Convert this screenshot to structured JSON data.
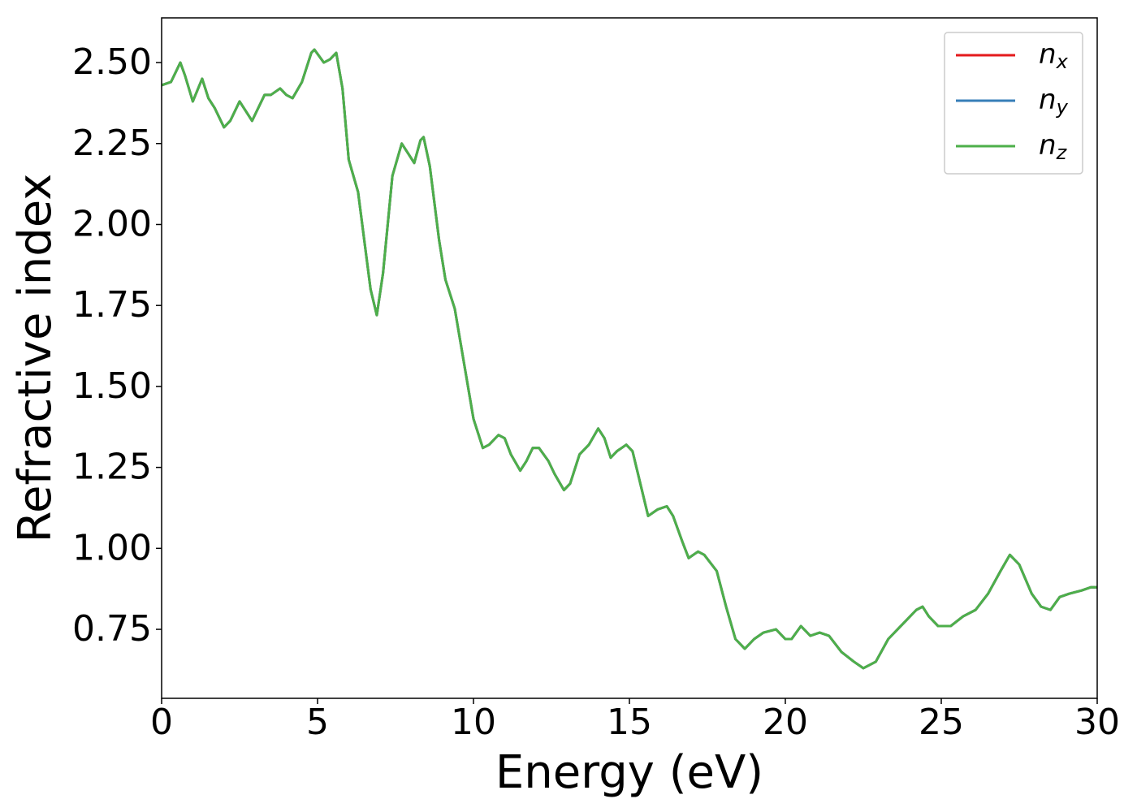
{
  "chart_data": {
    "type": "line",
    "xlabel": "Energy (eV)",
    "ylabel": "Refractive index",
    "x": [
      0,
      0.3,
      0.6,
      0.75,
      1.0,
      1.3,
      1.5,
      1.7,
      2.0,
      2.2,
      2.5,
      2.7,
      2.9,
      3.1,
      3.3,
      3.5,
      3.8,
      4.0,
      4.2,
      4.5,
      4.8,
      4.9,
      5.2,
      5.4,
      5.6,
      5.8,
      6.0,
      6.3,
      6.5,
      6.7,
      6.9,
      7.1,
      7.4,
      7.7,
      7.9,
      8.1,
      8.3,
      8.4,
      8.6,
      8.9,
      9.1,
      9.4,
      9.7,
      10.0,
      10.3,
      10.5,
      10.8,
      11.0,
      11.2,
      11.5,
      11.7,
      11.9,
      12.1,
      12.4,
      12.6,
      12.9,
      13.1,
      13.4,
      13.7,
      14.0,
      14.2,
      14.4,
      14.6,
      14.9,
      15.1,
      15.4,
      15.6,
      15.9,
      16.2,
      16.4,
      16.7,
      16.9,
      17.2,
      17.4,
      17.8,
      18.1,
      18.4,
      18.7,
      19.0,
      19.3,
      19.7,
      20.0,
      20.2,
      20.5,
      20.8,
      21.1,
      21.4,
      21.8,
      22.2,
      22.5,
      22.9,
      23.3,
      23.8,
      24.2,
      24.4,
      24.6,
      24.9,
      25.3,
      25.7,
      26.1,
      26.5,
      26.9,
      27.2,
      27.5,
      27.9,
      28.2,
      28.5,
      28.8,
      29.1,
      29.5,
      29.8,
      30.0
    ],
    "series": [
      {
        "name": "nx",
        "color": "#e41a1c",
        "values": [
          2.43,
          2.44,
          2.5,
          2.46,
          2.38,
          2.45,
          2.39,
          2.36,
          2.3,
          2.32,
          2.38,
          2.35,
          2.32,
          2.36,
          2.4,
          2.4,
          2.42,
          2.4,
          2.39,
          2.44,
          2.53,
          2.54,
          2.5,
          2.51,
          2.53,
          2.42,
          2.2,
          2.1,
          1.95,
          1.8,
          1.72,
          1.85,
          2.15,
          2.25,
          2.22,
          2.19,
          2.26,
          2.27,
          2.18,
          1.95,
          1.83,
          1.74,
          1.57,
          1.4,
          1.31,
          1.32,
          1.35,
          1.34,
          1.29,
          1.24,
          1.27,
          1.31,
          1.31,
          1.27,
          1.23,
          1.18,
          1.2,
          1.29,
          1.32,
          1.37,
          1.34,
          1.28,
          1.3,
          1.32,
          1.3,
          1.18,
          1.1,
          1.12,
          1.13,
          1.1,
          1.02,
          0.97,
          0.99,
          0.98,
          0.93,
          0.82,
          0.72,
          0.69,
          0.72,
          0.74,
          0.75,
          0.72,
          0.72,
          0.76,
          0.73,
          0.74,
          0.73,
          0.68,
          0.65,
          0.63,
          0.65,
          0.72,
          0.77,
          0.81,
          0.82,
          0.79,
          0.76,
          0.76,
          0.79,
          0.81,
          0.86,
          0.93,
          0.98,
          0.95,
          0.86,
          0.82,
          0.81,
          0.85,
          0.86,
          0.87,
          0.88,
          0.88
        ]
      },
      {
        "name": "ny",
        "color": "#377eb8",
        "values": [
          2.43,
          2.44,
          2.5,
          2.46,
          2.38,
          2.45,
          2.39,
          2.36,
          2.3,
          2.32,
          2.38,
          2.35,
          2.32,
          2.36,
          2.4,
          2.4,
          2.42,
          2.4,
          2.39,
          2.44,
          2.53,
          2.54,
          2.5,
          2.51,
          2.53,
          2.42,
          2.2,
          2.1,
          1.95,
          1.8,
          1.72,
          1.85,
          2.15,
          2.25,
          2.22,
          2.19,
          2.26,
          2.27,
          2.18,
          1.95,
          1.83,
          1.74,
          1.57,
          1.4,
          1.31,
          1.32,
          1.35,
          1.34,
          1.29,
          1.24,
          1.27,
          1.31,
          1.31,
          1.27,
          1.23,
          1.18,
          1.2,
          1.29,
          1.32,
          1.37,
          1.34,
          1.28,
          1.3,
          1.32,
          1.3,
          1.18,
          1.1,
          1.12,
          1.13,
          1.1,
          1.02,
          0.97,
          0.99,
          0.98,
          0.93,
          0.82,
          0.72,
          0.69,
          0.72,
          0.74,
          0.75,
          0.72,
          0.72,
          0.76,
          0.73,
          0.74,
          0.73,
          0.68,
          0.65,
          0.63,
          0.65,
          0.72,
          0.77,
          0.81,
          0.82,
          0.79,
          0.76,
          0.76,
          0.79,
          0.81,
          0.86,
          0.93,
          0.98,
          0.95,
          0.86,
          0.82,
          0.81,
          0.85,
          0.86,
          0.87,
          0.88,
          0.88
        ]
      },
      {
        "name": "nz",
        "color": "#4daf4a",
        "values": [
          2.43,
          2.44,
          2.5,
          2.46,
          2.38,
          2.45,
          2.39,
          2.36,
          2.3,
          2.32,
          2.38,
          2.35,
          2.32,
          2.36,
          2.4,
          2.4,
          2.42,
          2.4,
          2.39,
          2.44,
          2.53,
          2.54,
          2.5,
          2.51,
          2.53,
          2.42,
          2.2,
          2.1,
          1.95,
          1.8,
          1.72,
          1.85,
          2.15,
          2.25,
          2.22,
          2.19,
          2.26,
          2.27,
          2.18,
          1.95,
          1.83,
          1.74,
          1.57,
          1.4,
          1.31,
          1.32,
          1.35,
          1.34,
          1.29,
          1.24,
          1.27,
          1.31,
          1.31,
          1.27,
          1.23,
          1.18,
          1.2,
          1.29,
          1.32,
          1.37,
          1.34,
          1.28,
          1.3,
          1.32,
          1.3,
          1.18,
          1.1,
          1.12,
          1.13,
          1.1,
          1.02,
          0.97,
          0.99,
          0.98,
          0.93,
          0.82,
          0.72,
          0.69,
          0.72,
          0.74,
          0.75,
          0.72,
          0.72,
          0.76,
          0.73,
          0.74,
          0.73,
          0.68,
          0.65,
          0.63,
          0.65,
          0.72,
          0.77,
          0.81,
          0.82,
          0.79,
          0.76,
          0.76,
          0.79,
          0.81,
          0.86,
          0.93,
          0.98,
          0.95,
          0.86,
          0.82,
          0.81,
          0.85,
          0.86,
          0.87,
          0.88,
          0.88
        ]
      }
    ],
    "xlim": [
      0,
      30
    ],
    "xticks": [
      0,
      5,
      10,
      15,
      20,
      25,
      30
    ],
    "ylim": [
      0.537,
      2.638
    ],
    "yticks": [
      {
        "value": 0.75,
        "label": "0.75"
      },
      {
        "value": 1.0,
        "label": "1.00"
      },
      {
        "value": 1.25,
        "label": "1.25"
      },
      {
        "value": 1.5,
        "label": "1.50"
      },
      {
        "value": 1.75,
        "label": "1.75"
      },
      {
        "value": 2.0,
        "label": "2.00"
      },
      {
        "value": 2.25,
        "label": "2.25"
      },
      {
        "value": 2.5,
        "label": "2.50"
      }
    ],
    "grid": false,
    "legend": "upper right"
  }
}
